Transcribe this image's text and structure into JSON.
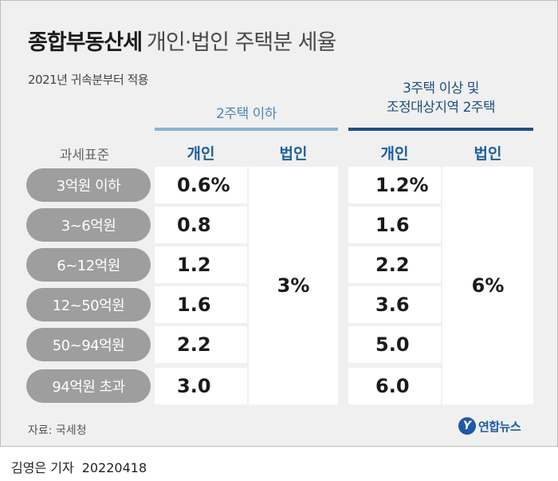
{
  "title": {
    "main": "종합부동산세",
    "sub": "개인·법인 주택분 세율"
  },
  "subtitle": "2021년 귀속분부터 적용",
  "group1_label": "2주택 이하",
  "group2_label_line1": "3주택 이상 및",
  "group2_label_line2": "조정대상지역 2주택",
  "columns": {
    "row_header": "과세표준",
    "individual": "개인",
    "corporate": "법인"
  },
  "rows": [
    {
      "bracket": "3억원 이하",
      "g1_individual": "0.6%",
      "g2_individual": "1.2%"
    },
    {
      "bracket": "3~6억원",
      "g1_individual": "0.8",
      "g2_individual": "1.6"
    },
    {
      "bracket": "6~12억원",
      "g1_individual": "1.2",
      "g2_individual": "2.2"
    },
    {
      "bracket": "12~50억원",
      "g1_individual": "1.6",
      "g2_individual": "3.6"
    },
    {
      "bracket": "50~94억원",
      "g1_individual": "2.2",
      "g2_individual": "5.0"
    },
    {
      "bracket": "94억원 초과",
      "g1_individual": "3.0",
      "g2_individual": "6.0"
    }
  ],
  "g1_corporate": "3%",
  "g2_corporate": "6%",
  "source": "자료: 국세청",
  "logo": {
    "mark": "Y",
    "text": "연합뉴스"
  },
  "credit": {
    "author": "김영은 기자",
    "date": "20220418"
  },
  "colors": {
    "accent_light": "#8ab2d4",
    "accent_dark": "#1e4f80",
    "pill": "#9e9e9e",
    "background": "#f0f0f0"
  }
}
